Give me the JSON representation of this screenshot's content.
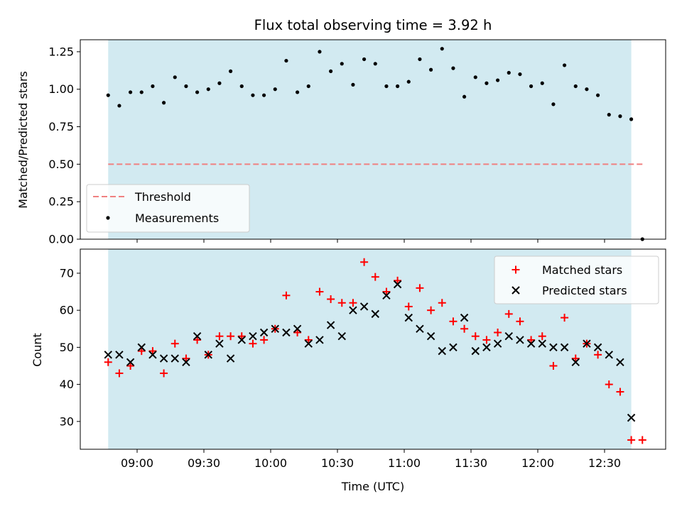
{
  "chart_data": {
    "type": "scatter",
    "title": "Flux total observing time = 3.92 h",
    "xlabel": "Time (UTC)",
    "x_ticks": [
      "09:00",
      "09:30",
      "10:00",
      "10:30",
      "11:00",
      "11:30",
      "12:00",
      "12:30"
    ],
    "shaded_span": [
      "08:47",
      "12:42"
    ],
    "shade_color": "#add8e6",
    "x": [
      "08:47",
      "08:52",
      "08:57",
      "09:02",
      "09:07",
      "09:12",
      "09:17",
      "09:22",
      "09:27",
      "09:32",
      "09:37",
      "09:42",
      "09:47",
      "09:52",
      "09:57",
      "10:02",
      "10:07",
      "10:12",
      "10:17",
      "10:22",
      "10:27",
      "10:32",
      "10:37",
      "10:42",
      "10:47",
      "10:52",
      "10:57",
      "11:02",
      "11:07",
      "11:12",
      "11:17",
      "11:22",
      "11:27",
      "11:32",
      "11:37",
      "11:42",
      "11:47",
      "11:52",
      "11:57",
      "12:02",
      "12:07",
      "12:12",
      "12:17",
      "12:22",
      "12:27",
      "12:32",
      "12:37",
      "12:42",
      "12:47"
    ],
    "top": {
      "ylabel": "Matched/Predicted stars",
      "ylim": [
        0,
        1.33
      ],
      "y_ticks": [
        "0.00",
        "0.25",
        "0.50",
        "0.75",
        "1.00",
        "1.25"
      ],
      "threshold": {
        "name": "Threshold",
        "value": 0.5,
        "x_range": [
          "08:47",
          "12:47"
        ],
        "color": "#f08080"
      },
      "measurements": {
        "name": "Measurements",
        "color": "#000000",
        "values": [
          0.96,
          0.89,
          0.98,
          0.98,
          1.02,
          0.91,
          1.08,
          1.02,
          0.98,
          1.0,
          1.04,
          1.12,
          1.02,
          0.96,
          0.96,
          1.0,
          1.19,
          0.98,
          1.02,
          1.25,
          1.12,
          1.17,
          1.03,
          1.2,
          1.17,
          1.02,
          1.02,
          1.05,
          1.2,
          1.13,
          1.27,
          1.14,
          0.95,
          1.08,
          1.04,
          1.06,
          1.11,
          1.1,
          1.02,
          1.04,
          0.9,
          1.16,
          1.02,
          1.0,
          0.96,
          0.83,
          0.82,
          0.8,
          0.0
        ]
      },
      "legend_position": "lower-left"
    },
    "bottom": {
      "ylabel": "Count",
      "ylim": [
        22.5,
        76.5
      ],
      "y_ticks": [
        "30",
        "40",
        "50",
        "60",
        "70"
      ],
      "series": [
        {
          "name": "Matched stars",
          "marker": "plus",
          "color": "#ff0000",
          "values": [
            46,
            43,
            45,
            49,
            49,
            43,
            51,
            47,
            52,
            48,
            53,
            53,
            53,
            51,
            52,
            55,
            64,
            54,
            52,
            65,
            63,
            62,
            62,
            73,
            69,
            65,
            68,
            61,
            66,
            60,
            62,
            57,
            55,
            53,
            52,
            54,
            59,
            57,
            52,
            53,
            45,
            58,
            47,
            51,
            48,
            40,
            38,
            25,
            25
          ]
        },
        {
          "name": "Predicted stars",
          "marker": "x",
          "color": "#000000",
          "values": [
            48,
            48,
            46,
            50,
            48,
            47,
            47,
            46,
            53,
            48,
            51,
            47,
            52,
            53,
            54,
            55,
            54,
            55,
            51,
            52,
            56,
            53,
            60,
            61,
            59,
            64,
            67,
            58,
            55,
            53,
            49,
            50,
            58,
            49,
            50,
            51,
            53,
            52,
            51,
            51,
            50,
            50,
            46,
            51,
            50,
            48,
            46,
            31,
            null
          ]
        }
      ],
      "legend_position": "upper-right"
    }
  }
}
